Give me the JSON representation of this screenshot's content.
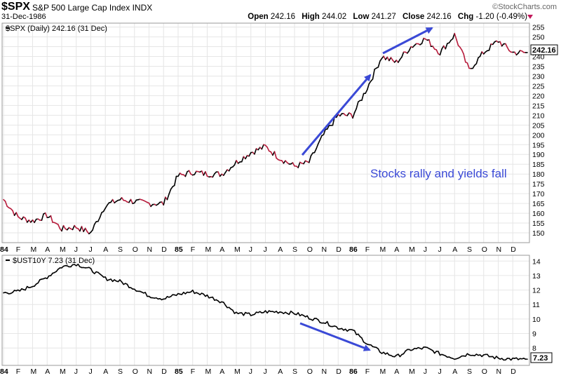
{
  "header": {
    "symbol": "$SPX",
    "name": "S&P 500 Large Cap Index",
    "exchange": "INDX",
    "date": "31-Dec-1986",
    "brand": "©StockCharts.com",
    "open_label": "Open",
    "open": "242.16",
    "high_label": "High",
    "high": "244.02",
    "low_label": "Low",
    "low": "241.27",
    "close_label": "Close",
    "close": "242.16",
    "chg_label": "Chg",
    "chg": "-1.20 (-0.49%)"
  },
  "colors": {
    "up": "#000000",
    "down": "#b71c3c",
    "annotation": "#3a49d6",
    "grid": "#e6e6e6"
  },
  "chart_data": [
    {
      "type": "line",
      "label": "$SPX (Daily) 242.16 (31 Dec)",
      "last_value": "242.16",
      "ylim": [
        145,
        257
      ],
      "yticks": [
        150,
        155,
        160,
        165,
        170,
        175,
        180,
        185,
        190,
        195,
        200,
        205,
        210,
        215,
        220,
        225,
        230,
        235,
        240,
        245,
        250,
        255
      ],
      "annotation": "Stocks rally and yields fall",
      "x": [
        "1984-01",
        "1984-02",
        "1984-03",
        "1984-04",
        "1984-05",
        "1984-06",
        "1984-07",
        "1984-08",
        "1984-09",
        "1984-10",
        "1984-11",
        "1984-12",
        "1985-01",
        "1985-02",
        "1985-03",
        "1985-04",
        "1985-05",
        "1985-06",
        "1985-07",
        "1985-08",
        "1985-09",
        "1985-10",
        "1985-11",
        "1985-12",
        "1986-01",
        "1986-02",
        "1986-03",
        "1986-04",
        "1986-05",
        "1986-06",
        "1986-07",
        "1986-08",
        "1986-09",
        "1986-10",
        "1986-11",
        "1986-12"
      ],
      "values": [
        167,
        158,
        156,
        159,
        152,
        153,
        150,
        164,
        167,
        166,
        165,
        165,
        179,
        181,
        180,
        180,
        186,
        191,
        194,
        188,
        184,
        186,
        200,
        210,
        210,
        224,
        240,
        237,
        245,
        249,
        242,
        251,
        233,
        242,
        248,
        242
      ]
    },
    {
      "type": "line",
      "label": "$UST10Y 7.23 (31 Dec)",
      "last_value": "7.23",
      "ylim": [
        6.8,
        14.4
      ],
      "yticks": [
        8,
        9,
        10,
        11,
        12,
        13,
        14
      ],
      "x": [
        "1984-01",
        "1984-02",
        "1984-03",
        "1984-04",
        "1984-05",
        "1984-06",
        "1984-07",
        "1984-08",
        "1984-09",
        "1984-10",
        "1984-11",
        "1984-12",
        "1985-01",
        "1985-02",
        "1985-03",
        "1985-04",
        "1985-05",
        "1985-06",
        "1985-07",
        "1985-08",
        "1985-09",
        "1985-10",
        "1985-11",
        "1985-12",
        "1986-01",
        "1986-02",
        "1986-03",
        "1986-04",
        "1986-05",
        "1986-06",
        "1986-07",
        "1986-08",
        "1986-09",
        "1986-10",
        "1986-11",
        "1986-12"
      ],
      "values": [
        11.8,
        11.9,
        12.3,
        12.9,
        13.6,
        13.8,
        13.4,
        12.8,
        12.6,
        12.1,
        11.6,
        11.4,
        11.7,
        11.9,
        11.6,
        11.2,
        10.4,
        10.3,
        10.5,
        10.5,
        10.4,
        10.1,
        9.8,
        9.4,
        9.2,
        8.3,
        7.7,
        7.4,
        7.9,
        8.0,
        7.6,
        7.3,
        7.6,
        7.5,
        7.3,
        7.23
      ]
    }
  ],
  "x_axis": {
    "labels": [
      "84",
      "F",
      "M",
      "A",
      "M",
      "J",
      "J",
      "A",
      "S",
      "O",
      "N",
      "D",
      "85",
      "F",
      "M",
      "A",
      "M",
      "J",
      "J",
      "A",
      "S",
      "O",
      "N",
      "D",
      "86",
      "F",
      "M",
      "A",
      "M",
      "J",
      "J",
      "A",
      "S",
      "O",
      "N",
      "D"
    ]
  }
}
